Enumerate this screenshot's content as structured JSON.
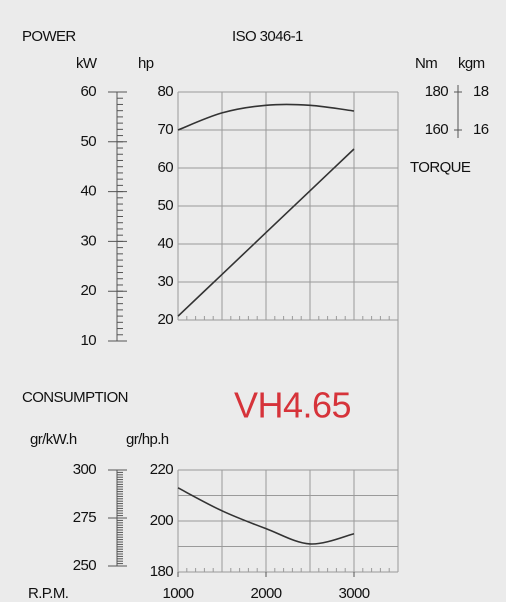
{
  "standard": "ISO 3046-1",
  "model": "VH4.65",
  "chart_data": [
    {
      "type": "line",
      "title": "POWER",
      "x": [
        1000,
        1500,
        2000,
        2500,
        3000
      ],
      "xlim": [
        1000,
        3500
      ],
      "ylabel": "hp",
      "ylim": [
        20,
        80
      ],
      "yticks": [
        20,
        30,
        40,
        50,
        60,
        70,
        80
      ],
      "alt_ylabel": "kW",
      "alt_ylim": [
        10,
        60
      ],
      "alt_yticks": [
        10,
        20,
        30,
        40,
        50,
        60
      ],
      "y2title": "TORQUE",
      "y2label": "Nm",
      "y2lim": [
        160,
        180
      ],
      "y2ticks": [
        160,
        180
      ],
      "y2_alt_label": "kgm",
      "y2_alt_lim": [
        16,
        18
      ],
      "y2_alt_ticks": [
        16,
        18
      ],
      "grid": true,
      "series": [
        {
          "color": "#333333",
          "values": [
            21,
            32,
            43,
            54,
            65
          ]
        },
        {
          "color": "#333333",
          "axis": "y2",
          "values": [
            160,
            169,
            173,
            173,
            170
          ]
        }
      ]
    },
    {
      "type": "line",
      "title": "CONSUMPTION",
      "x": [
        1000,
        1500,
        2000,
        2500,
        3000
      ],
      "xlim": [
        1000,
        3500
      ],
      "xlabel": "R.P.M.",
      "xticks": [
        1000,
        2000,
        3000
      ],
      "ylabel": "gr/hp.h",
      "ylim": [
        180,
        220
      ],
      "yticks": [
        180,
        200,
        220
      ],
      "alt_ylabel": "gr/kW.h",
      "alt_ylim": [
        250,
        300
      ],
      "alt_yticks": [
        250,
        275,
        300
      ],
      "grid": true,
      "series": [
        {
          "color": "#333333",
          "values": [
            213,
            204,
            197,
            191,
            195
          ]
        }
      ]
    }
  ]
}
